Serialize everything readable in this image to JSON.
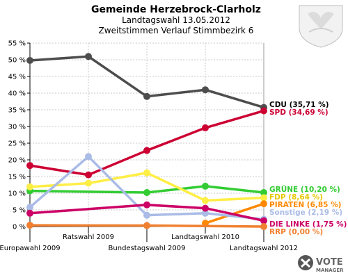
{
  "header": {
    "title": "Gemeinde Herzebrock-Clarholz",
    "date_line": "Landtagswahl 13.05.2012",
    "subtitle": "Zweitstimmen Verlauf Stimmbezirk 6"
  },
  "branding": {
    "line1": "VOTE",
    "line2": "MANAGER"
  },
  "chart_data": {
    "type": "line",
    "title": "Gemeinde Herzebrock-Clarholz",
    "subtitle": "Zweitstimmen Verlauf Stimmbezirk 6",
    "categories": [
      "Europawahl 2009",
      "Ratswahl 2009",
      "Bundestagswahl 2009",
      "Landtagswahl 2010",
      "Landtagswahl 2012"
    ],
    "ylim": [
      0,
      55
    ],
    "ytick_labels": [
      "0 %",
      "5 %",
      "10 %",
      "15 %",
      "20 %",
      "25 %",
      "30 %",
      "35 %",
      "40 %",
      "45 %",
      "50 %",
      "55 %"
    ],
    "grid": true,
    "series": [
      {
        "name": "CDU",
        "legend": "CDU (35,71 %)",
        "color": "#4d4d4d",
        "values": [
          49.8,
          51.0,
          39.0,
          41.0,
          35.71
        ]
      },
      {
        "name": "SPD",
        "legend": "SPD (34,69 %)",
        "color": "#cc0033",
        "values": [
          18.3,
          15.5,
          22.8,
          29.6,
          34.69
        ]
      },
      {
        "name": "GRÜNE",
        "legend": "GRÜNE (10,20 %)",
        "color": "#33cc33",
        "values": [
          10.7,
          null,
          10.2,
          12.1,
          10.2
        ]
      },
      {
        "name": "FDP",
        "legend": "FDP (8,64 %)",
        "color": "#ffee44",
        "values": [
          11.9,
          13.0,
          16.1,
          7.8,
          8.64
        ]
      },
      {
        "name": "PIRATEN",
        "legend": "PIRATEN (6,85 %)",
        "color": "#ff8800",
        "values": [
          null,
          null,
          null,
          1.0,
          6.85
        ]
      },
      {
        "name": "Sonstige",
        "legend": "Sonstige (2,19 %)",
        "color": "#aabbe6",
        "values": [
          5.8,
          21.0,
          3.4,
          4.0,
          2.19
        ]
      },
      {
        "name": "DIE LINKE",
        "legend": "DIE LINKE (1,75 %)",
        "color": "#cc0066",
        "values": [
          4.0,
          null,
          6.5,
          5.5,
          1.75
        ]
      },
      {
        "name": "RRP",
        "legend": "RRP (0,00 %)",
        "color": "#f08030",
        "values": [
          0.4,
          null,
          0.3,
          null,
          0.0
        ]
      }
    ]
  }
}
